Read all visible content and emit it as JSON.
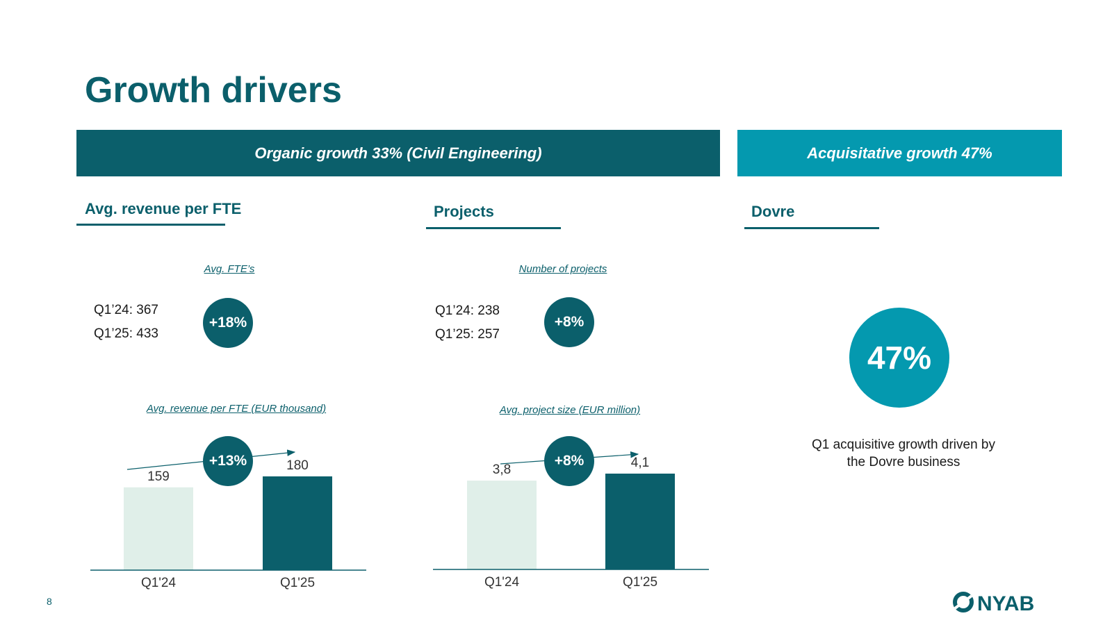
{
  "slide": {
    "title": "Growth drivers",
    "page_number": "8"
  },
  "banners": {
    "organic": "Organic growth 33% (Civil Engineering)",
    "acquisitive": "Acquisitative growth 47%"
  },
  "sections": {
    "fte": {
      "heading": "Avg. revenue per FTE",
      "sub_metric_label": "Avg. FTE’s",
      "stat_1": "Q1’24: 367",
      "stat_2": "Q1’25: 433",
      "change_badge": "+18%",
      "chart_label": "Avg. revenue per FTE (EUR thousand)",
      "chart_badge": "+13%"
    },
    "projects": {
      "heading": "Projects",
      "sub_metric_label": "Number of projects",
      "stat_1": "Q1’24: 238",
      "stat_2": "Q1’25: 257",
      "change_badge": "+8%",
      "chart_label": "Avg. project size (EUR million)",
      "chart_badge": "+8%"
    },
    "dovre": {
      "heading": "Dovre",
      "big_badge": "47%",
      "desc_line_1": "Q1 acquisitive growth driven by",
      "desc_line_2": "the Dovre business"
    }
  },
  "logo": {
    "name": "nyab-logo",
    "text": "NYAB"
  },
  "colors": {
    "dark_teal": "#0b5f6b",
    "light_teal": "#0499af",
    "pale_bar": "#e0efe9"
  },
  "chart_data": [
    {
      "type": "bar",
      "title": "Avg. revenue per FTE (EUR thousand)",
      "categories": [
        "Q1'24",
        "Q1'25"
      ],
      "values": [
        159,
        180
      ],
      "value_labels": [
        "159",
        "180"
      ],
      "ylim": [
        0,
        200
      ],
      "xlabel": "",
      "ylabel": "",
      "annotation": "+13%"
    },
    {
      "type": "bar",
      "title": "Avg. project size (EUR million)",
      "categories": [
        "Q1'24",
        "Q1'25"
      ],
      "values": [
        3.8,
        4.1
      ],
      "value_labels": [
        "3,8",
        "4,1"
      ],
      "ylim": [
        0,
        5.5
      ],
      "xlabel": "",
      "ylabel": "",
      "annotation": "+8%"
    }
  ]
}
